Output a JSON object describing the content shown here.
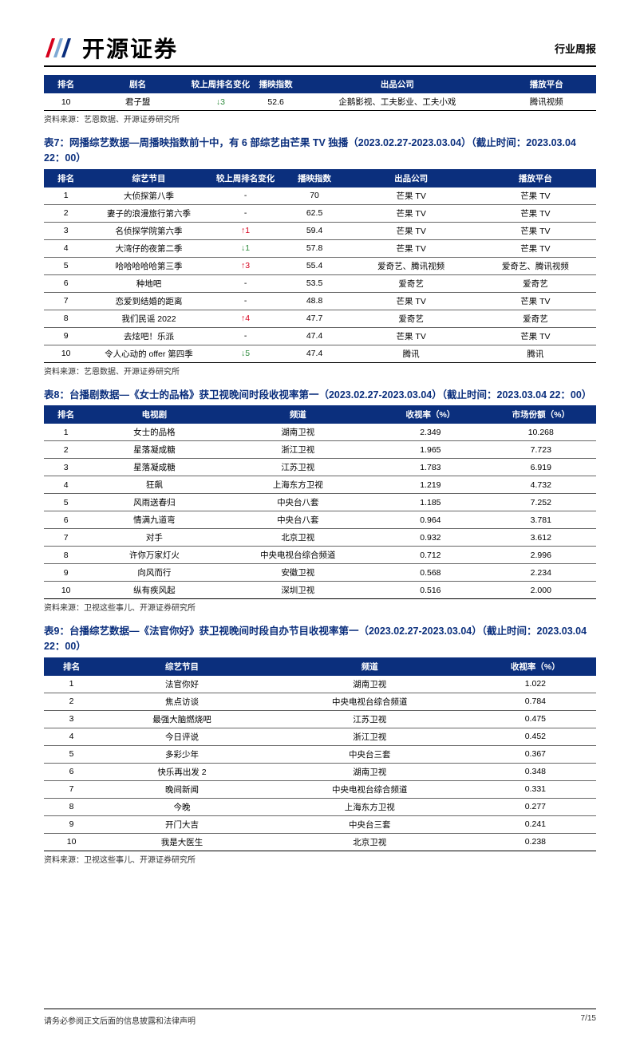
{
  "header": {
    "company": "开源证券",
    "report_type": "行业周报"
  },
  "colors": {
    "header_bg": "#0b2f7d",
    "up": "#d6001c",
    "down": "#2e8b3d"
  },
  "table6": {
    "columns": [
      "排名",
      "剧名",
      "较上周排名变化",
      "播映指数",
      "出品公司",
      "播放平台"
    ],
    "rows": [
      {
        "rank": "10",
        "name": "君子盟",
        "change": "↓3",
        "change_dir": "down",
        "index": "52.6",
        "producer": "企鹅影视、工夫影业、工夫小戏",
        "platform": "腾讯视频"
      }
    ],
    "source": "资料来源：艺恩数据、开源证券研究所"
  },
  "table7": {
    "caption": "表7：网播综艺数据—周播映指数前十中，有 6 部综艺由芒果 TV 独播（2023.02.27-2023.03.04）（截止时间：2023.03.04 22：00）",
    "columns": [
      "排名",
      "综艺节目",
      "较上周排名变化",
      "播映指数",
      "出品公司",
      "播放平台"
    ],
    "rows": [
      {
        "rank": "1",
        "name": "大侦探第八季",
        "change": "-",
        "change_dir": "",
        "index": "70",
        "producer": "芒果 TV",
        "platform": "芒果 TV"
      },
      {
        "rank": "2",
        "name": "妻子的浪漫旅行第六季",
        "change": "-",
        "change_dir": "",
        "index": "62.5",
        "producer": "芒果 TV",
        "platform": "芒果 TV"
      },
      {
        "rank": "3",
        "name": "名侦探学院第六季",
        "change": "↑1",
        "change_dir": "up",
        "index": "59.4",
        "producer": "芒果 TV",
        "platform": "芒果 TV"
      },
      {
        "rank": "4",
        "name": "大湾仔的夜第二季",
        "change": "↓1",
        "change_dir": "down",
        "index": "57.8",
        "producer": "芒果 TV",
        "platform": "芒果 TV"
      },
      {
        "rank": "5",
        "name": "哈哈哈哈哈第三季",
        "change": "↑3",
        "change_dir": "up",
        "index": "55.4",
        "producer": "爱奇艺、腾讯视频",
        "platform": "爱奇艺、腾讯视频"
      },
      {
        "rank": "6",
        "name": "种地吧",
        "change": "-",
        "change_dir": "",
        "index": "53.5",
        "producer": "爱奇艺",
        "platform": "爱奇艺"
      },
      {
        "rank": "7",
        "name": "恋爱到结婚的距离",
        "change": "-",
        "change_dir": "",
        "index": "48.8",
        "producer": "芒果 TV",
        "platform": "芒果 TV"
      },
      {
        "rank": "8",
        "name": "我们民谣 2022",
        "change": "↑4",
        "change_dir": "up",
        "index": "47.7",
        "producer": "爱奇艺",
        "platform": "爱奇艺"
      },
      {
        "rank": "9",
        "name": "去炫吧！乐派",
        "change": "-",
        "change_dir": "",
        "index": "47.4",
        "producer": "芒果 TV",
        "platform": "芒果 TV"
      },
      {
        "rank": "10",
        "name": "令人心动的 offer 第四季",
        "change": "↓5",
        "change_dir": "down",
        "index": "47.4",
        "producer": "腾讯",
        "platform": "腾讯"
      }
    ],
    "source": "资料来源：艺恩数据、开源证券研究所"
  },
  "table8": {
    "caption": "表8：台播剧数据—《女士的品格》获卫视晚间时段收视率第一（2023.02.27-2023.03.04）（截止时间：2023.03.04 22：00）",
    "columns": [
      "排名",
      "电视剧",
      "频道",
      "收视率（%）",
      "市场份额（%）"
    ],
    "rows": [
      {
        "rank": "1",
        "name": "女士的品格",
        "channel": "湖南卫视",
        "rating": "2.349",
        "share": "10.268"
      },
      {
        "rank": "2",
        "name": "星落凝成糖",
        "channel": "浙江卫视",
        "rating": "1.965",
        "share": "7.723"
      },
      {
        "rank": "3",
        "name": "星落凝成糖",
        "channel": "江苏卫视",
        "rating": "1.783",
        "share": "6.919"
      },
      {
        "rank": "4",
        "name": "狂飙",
        "channel": "上海东方卫视",
        "rating": "1.219",
        "share": "4.732"
      },
      {
        "rank": "5",
        "name": "风雨送春归",
        "channel": "中央台八套",
        "rating": "1.185",
        "share": "7.252"
      },
      {
        "rank": "6",
        "name": "情满九道弯",
        "channel": "中央台八套",
        "rating": "0.964",
        "share": "3.781"
      },
      {
        "rank": "7",
        "name": "对手",
        "channel": "北京卫视",
        "rating": "0.932",
        "share": "3.612"
      },
      {
        "rank": "8",
        "name": "许你万家灯火",
        "channel": "中央电视台综合频道",
        "rating": "0.712",
        "share": "2.996"
      },
      {
        "rank": "9",
        "name": "向风而行",
        "channel": "安徽卫视",
        "rating": "0.568",
        "share": "2.234"
      },
      {
        "rank": "10",
        "name": "纵有疾风起",
        "channel": "深圳卫视",
        "rating": "0.516",
        "share": "2.000"
      }
    ],
    "source": "资料来源：卫视这些事儿、开源证券研究所"
  },
  "table9": {
    "caption": "表9：台播综艺数据—《法官你好》获卫视晚间时段自办节目收视率第一（2023.02.27-2023.03.04）（截止时间：2023.03.04 22：00）",
    "columns": [
      "排名",
      "综艺节目",
      "频道",
      "收视率（%）"
    ],
    "rows": [
      {
        "rank": "1",
        "name": "法官你好",
        "channel": "湖南卫视",
        "rating": "1.022"
      },
      {
        "rank": "2",
        "name": "焦点访谈",
        "channel": "中央电视台综合频道",
        "rating": "0.784"
      },
      {
        "rank": "3",
        "name": "最强大脑燃烧吧",
        "channel": "江苏卫视",
        "rating": "0.475"
      },
      {
        "rank": "4",
        "name": "今日评说",
        "channel": "浙江卫视",
        "rating": "0.452"
      },
      {
        "rank": "5",
        "name": "多彩少年",
        "channel": "中央台三套",
        "rating": "0.367"
      },
      {
        "rank": "6",
        "name": "快乐再出发 2",
        "channel": "湖南卫视",
        "rating": "0.348"
      },
      {
        "rank": "7",
        "name": "晚间新闻",
        "channel": "中央电视台综合频道",
        "rating": "0.331"
      },
      {
        "rank": "8",
        "name": "今晚",
        "channel": "上海东方卫视",
        "rating": "0.277"
      },
      {
        "rank": "9",
        "name": "开门大吉",
        "channel": "中央台三套",
        "rating": "0.241"
      },
      {
        "rank": "10",
        "name": "我是大医生",
        "channel": "北京卫视",
        "rating": "0.238"
      }
    ],
    "source": "资料来源：卫视这些事儿、开源证券研究所"
  },
  "footer": {
    "disclaimer": "请务必参阅正文后面的信息披露和法律声明",
    "page": "7/15"
  }
}
